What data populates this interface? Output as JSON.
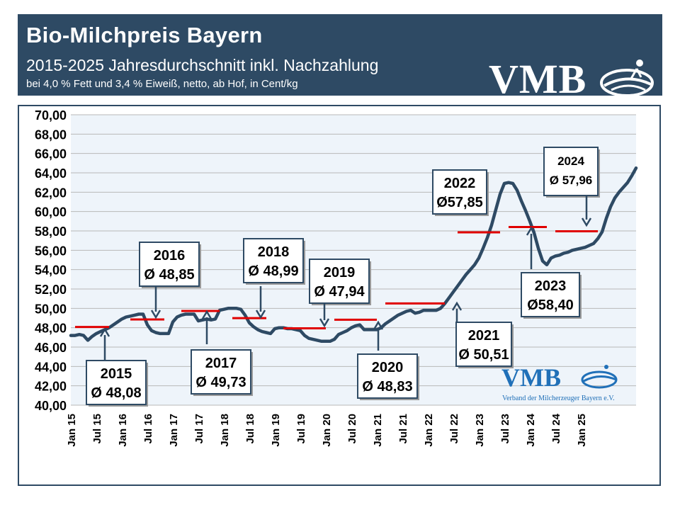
{
  "header": {
    "title": "Bio-Milchpreis Bayern",
    "subtitle": "2015-2025 Jahresdurchschnitt  inkl. Nachzahlung",
    "note": "bei 4,0 % Fett und 3,4 % Eiweiß, netto, ab Hof, in Cent/kg",
    "logo": "VMB"
  },
  "badge": {
    "logo": "VMB",
    "sub": "Verband der Milcherzeuger Bayern e.V."
  },
  "colors": {
    "header_bg": "#2e4a64",
    "line": "#2e4a64",
    "avg_marker": "#e00000",
    "plot_bg": "#eef4fa",
    "grid": "#b8b8b8"
  },
  "chart_data": {
    "type": "line",
    "title": "Bio-Milchpreis Bayern",
    "ylim": [
      40,
      70
    ],
    "y_ticks": [
      "40,00",
      "42,00",
      "44,00",
      "46,00",
      "48,00",
      "50,00",
      "52,00",
      "54,00",
      "56,00",
      "58,00",
      "60,00",
      "62,00",
      "64,00",
      "66,00",
      "68,00",
      "70,00"
    ],
    "x_ticks": [
      "Jan 15",
      "Jul 15",
      "Jan 16",
      "Jul 16",
      "Jan 17",
      "Jul 17",
      "Jan 18",
      "Jul 18",
      "Jan 19",
      "Jul 19",
      "Jan 20",
      "Jul 20",
      "Jan 21",
      "Jul 21",
      "Jan 22",
      "Jul 22",
      "Jan 23",
      "Jul 23",
      "Jan 24",
      "Jul 24",
      "Jan 25"
    ],
    "grid": true,
    "series": [
      {
        "x": [
          0,
          1,
          2,
          3,
          4,
          5,
          6,
          7,
          8,
          9,
          10,
          11,
          12,
          13,
          14,
          15,
          16,
          17,
          18,
          19,
          20,
          21,
          22,
          23,
          24,
          25,
          26,
          27,
          28,
          29,
          30,
          31,
          32,
          33,
          34,
          35,
          36,
          37,
          38,
          39,
          40,
          41,
          42,
          43,
          44,
          45,
          46,
          47,
          48,
          49,
          50,
          51,
          52,
          53,
          54,
          55,
          56,
          57,
          58,
          59,
          60,
          61,
          62,
          63,
          64,
          65,
          66,
          67,
          68,
          69,
          70,
          71,
          72,
          73,
          74,
          75,
          76,
          77,
          78,
          79,
          80,
          81,
          82,
          83,
          84,
          85,
          86,
          87,
          88,
          89,
          90,
          91,
          92,
          93,
          94,
          95,
          96,
          97,
          98,
          99,
          100,
          101,
          102,
          103,
          104,
          105,
          106,
          107,
          108,
          109,
          110,
          111,
          112,
          113,
          114,
          115,
          116,
          117,
          118,
          119,
          120,
          121,
          122,
          123,
          124,
          125
        ],
        "y": [
          47.2,
          47.2,
          47.3,
          47.2,
          46.7,
          47.1,
          47.4,
          47.6,
          47.8,
          48.0,
          48.3,
          48.6,
          48.9,
          49.1,
          49.2,
          49.3,
          49.4,
          49.4,
          48.3,
          47.7,
          47.5,
          47.4,
          47.4,
          47.4,
          48.6,
          49.1,
          49.3,
          49.4,
          49.4,
          49.4,
          48.7,
          48.8,
          48.9,
          48.8,
          48.9,
          49.8,
          49.9,
          50.0,
          50.0,
          50.0,
          49.9,
          49.3,
          48.5,
          48.1,
          47.8,
          47.6,
          47.5,
          47.4,
          47.9,
          48.0,
          48.0,
          47.9,
          47.9,
          47.8,
          47.7,
          47.2,
          46.9,
          46.8,
          46.7,
          46.6,
          46.6,
          46.6,
          46.8,
          47.3,
          47.5,
          47.7,
          48.0,
          48.2,
          48.3,
          47.8,
          47.8,
          47.8,
          47.8,
          48.0,
          48.4,
          48.7,
          49.0,
          49.3,
          49.5,
          49.7,
          49.8,
          49.5,
          49.6,
          49.8,
          49.8,
          49.8,
          49.8,
          50.0,
          50.5,
          51.1,
          51.7,
          52.3,
          52.9,
          53.5,
          54.0,
          54.5,
          55.2,
          56.2,
          57.3,
          58.6,
          60.2,
          61.8,
          62.9,
          63.0,
          62.9,
          62.2,
          61.1,
          60.1,
          59.0,
          57.8,
          56.2,
          54.9,
          54.5,
          55.2,
          55.4,
          55.5,
          55.7,
          55.8,
          56.0,
          56.1,
          56.2,
          56.3,
          56.5,
          56.7,
          57.2,
          57.9
        ]
      }
    ],
    "series_tail": {
      "note": "",
      "x": [
        126,
        127,
        128,
        129,
        130,
        131,
        132,
        133
      ],
      "y": [
        59.3,
        60.5,
        61.4,
        62.0,
        62.5,
        63.0,
        63.7,
        64.5
      ]
    },
    "annual_averages": [
      {
        "year": "2015",
        "value": 48.08,
        "label_year": "2015",
        "label_value": "Ø 48,08"
      },
      {
        "year": "2016",
        "value": 48.85,
        "label_year": "2016",
        "label_value": "Ø 48,85"
      },
      {
        "year": "2017",
        "value": 49.73,
        "label_year": "2017",
        "label_value": "Ø 49,73"
      },
      {
        "year": "2018",
        "value": 48.99,
        "label_year": "2018",
        "label_value": "Ø 48,99"
      },
      {
        "year": "2019",
        "value": 47.94,
        "label_year": "2019",
        "label_value": "Ø 47,94"
      },
      {
        "year": "2020",
        "value": 48.83,
        "label_year": "2020",
        "label_value": "Ø 48,83"
      },
      {
        "year": "2021",
        "value": 50.51,
        "label_year": "2021",
        "label_value": "Ø 50,51"
      },
      {
        "year": "2022",
        "value": 57.85,
        "label_year": "2022",
        "label_value": "Ø57,85"
      },
      {
        "year": "2023",
        "value": 58.4,
        "label_year": "2023",
        "label_value": "Ø58,40"
      },
      {
        "year": "2024",
        "value": 57.96,
        "label_year": "2024",
        "label_value": "Ø 57,96"
      }
    ]
  }
}
